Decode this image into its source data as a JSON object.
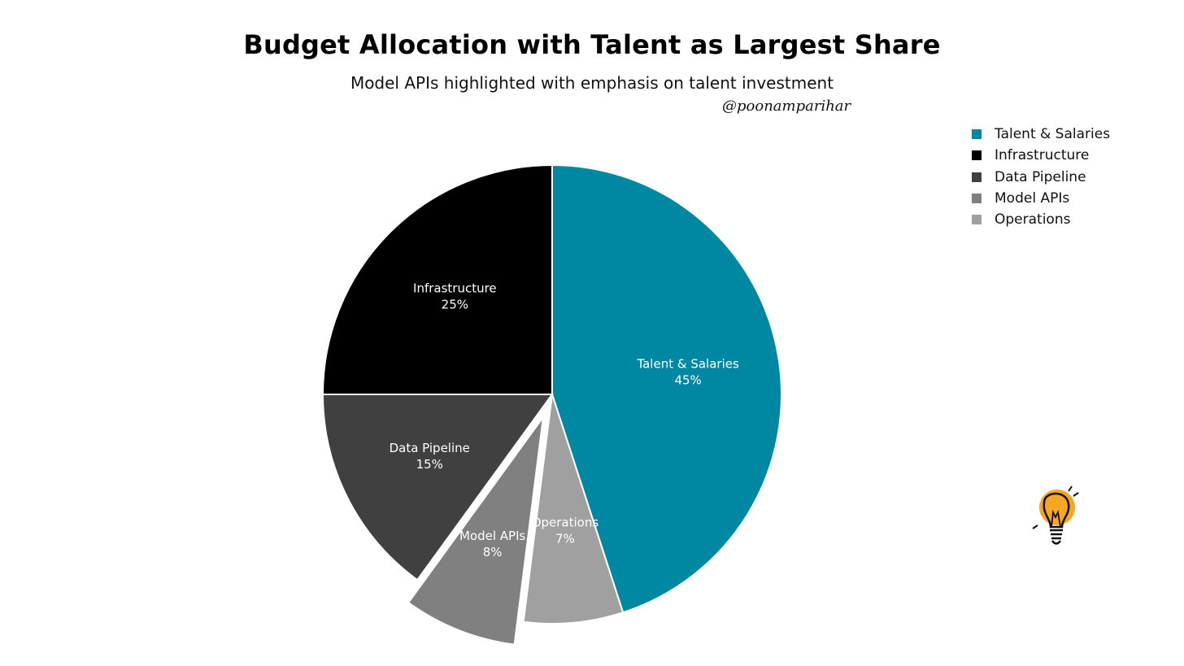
{
  "chart_data": {
    "type": "pie",
    "title": "Budget Allocation with Talent as Largest Share",
    "subtitle": "Model APIs highlighted with emphasis on talent investment",
    "watermark": "@poonamparihar",
    "legend_position": "top-right",
    "slices": [
      {
        "label": "Talent & Salaries",
        "value": 45,
        "value_label": "45%",
        "color": "#0088a3",
        "exploded": false
      },
      {
        "label": "Operations",
        "value": 7,
        "value_label": "7%",
        "color": "#a0a0a0",
        "exploded": false
      },
      {
        "label": "Model APIs",
        "value": 8,
        "value_label": "8%",
        "color": "#808080",
        "exploded": true
      },
      {
        "label": "Data Pipeline",
        "value": 15,
        "value_label": "15%",
        "color": "#404040",
        "exploded": false
      },
      {
        "label": "Infrastructure",
        "value": 25,
        "value_label": "25%",
        "color": "#000000",
        "exploded": false
      }
    ],
    "legend": [
      {
        "label": "Talent & Salaries",
        "color": "#0088a3"
      },
      {
        "label": "Infrastructure",
        "color": "#000000"
      },
      {
        "label": "Data Pipeline",
        "color": "#404040"
      },
      {
        "label": "Model APIs",
        "color": "#808080"
      },
      {
        "label": "Operations",
        "color": "#a0a0a0"
      }
    ]
  }
}
